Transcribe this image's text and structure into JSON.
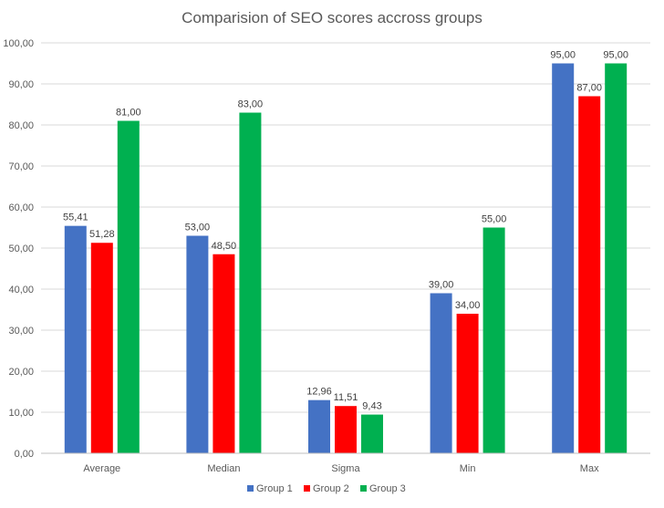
{
  "chart_data": {
    "type": "bar",
    "title": "Comparision of SEO scores accross groups",
    "xlabel": "",
    "ylabel": "",
    "categories": [
      "Average",
      "Median",
      "Sigma",
      "Min",
      "Max"
    ],
    "series": [
      {
        "name": "Group 1",
        "color": "#4472C4",
        "values": [
          55.41,
          53.0,
          12.96,
          39.0,
          95.0
        ],
        "labels": [
          "55,41",
          "53,00",
          "12,96",
          "39,00",
          "95,00"
        ]
      },
      {
        "name": "Group 2",
        "color": "#FF0000",
        "values": [
          51.28,
          48.5,
          11.51,
          34.0,
          87.0
        ],
        "labels": [
          "51,28",
          "48,50",
          "11,51",
          "34,00",
          "87,00"
        ]
      },
      {
        "name": "Group 3",
        "color": "#00B050",
        "values": [
          81.0,
          83.0,
          9.43,
          55.0,
          95.0
        ],
        "labels": [
          "81,00",
          "83,00",
          "9,43",
          "55,00",
          "95,00"
        ]
      }
    ],
    "ylim": [
      0,
      100
    ],
    "yticks": [
      "0,00",
      "10,00",
      "20,00",
      "30,00",
      "40,00",
      "50,00",
      "60,00",
      "70,00",
      "80,00",
      "90,00",
      "100,00"
    ],
    "grid": true,
    "legend_position": "bottom"
  }
}
